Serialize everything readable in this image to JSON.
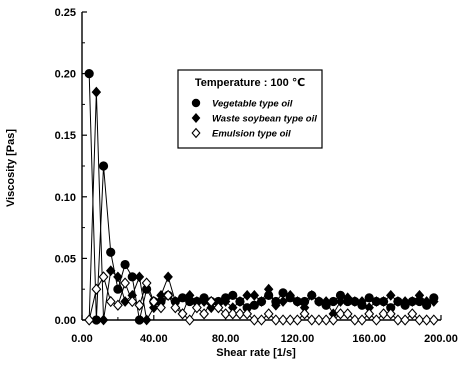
{
  "chart_data": {
    "type": "line",
    "title": "",
    "xlabel": "Shear rate [1/s]",
    "ylabel": "Viscosity [Pas]",
    "xlim": [
      0,
      200
    ],
    "ylim": [
      0,
      0.25
    ],
    "x_ticks": [
      0,
      40,
      80,
      120,
      160,
      200
    ],
    "x_tick_labels": [
      "0.00",
      "40.00",
      "80.00",
      "120.00",
      "160.00",
      "200.00"
    ],
    "y_ticks": [
      0,
      0.05,
      0.1,
      0.15,
      0.2,
      0.25
    ],
    "y_tick_labels": [
      "0.00",
      "0.05",
      "0.10",
      "0.15",
      "0.20",
      "0.25"
    ],
    "grid": false,
    "legend": {
      "title": "Temperature : 100 ℃",
      "placement": "top-center"
    },
    "series": [
      {
        "name": "Vegetable type oil",
        "marker": "filled-circle",
        "x": [
          4,
          8,
          12,
          16,
          20,
          24,
          28,
          32,
          36,
          40,
          44,
          48,
          52,
          56,
          60,
          64,
          68,
          72,
          76,
          80,
          84,
          88,
          92,
          96,
          100,
          104,
          108,
          112,
          116,
          120,
          124,
          128,
          132,
          136,
          140,
          144,
          148,
          152,
          156,
          160,
          164,
          168,
          172,
          176,
          180,
          184,
          188,
          192,
          196
        ],
        "y": [
          0.2,
          0.0,
          0.125,
          0.055,
          0.025,
          0.045,
          0.035,
          0.0,
          0.025,
          0.015,
          0.015,
          0.02,
          0.015,
          0.018,
          0.015,
          0.015,
          0.018,
          0.015,
          0.015,
          0.018,
          0.02,
          0.015,
          0.01,
          0.012,
          0.015,
          0.02,
          0.015,
          0.022,
          0.018,
          0.015,
          0.015,
          0.02,
          0.015,
          0.012,
          0.015,
          0.02,
          0.015,
          0.015,
          0.012,
          0.018,
          0.015,
          0.015,
          0.01,
          0.015,
          0.012,
          0.015,
          0.015,
          0.012,
          0.018
        ]
      },
      {
        "name": "Waste soybean type oil",
        "marker": "filled-diamond",
        "x": [
          4,
          8,
          12,
          16,
          20,
          24,
          28,
          32,
          36,
          40,
          44,
          48,
          52,
          56,
          60,
          64,
          68,
          72,
          76,
          80,
          84,
          88,
          92,
          96,
          100,
          104,
          108,
          112,
          116,
          120,
          124,
          128,
          132,
          136,
          140,
          144,
          148,
          152,
          156,
          160,
          164,
          168,
          172,
          176,
          180,
          184,
          188,
          192,
          196
        ],
        "y": [
          0.0,
          0.185,
          0.0,
          0.04,
          0.035,
          0.015,
          0.02,
          0.035,
          0.0,
          0.01,
          0.02,
          0.035,
          0.015,
          0.005,
          0.02,
          0.015,
          0.015,
          0.01,
          0.01,
          0.015,
          0.01,
          0.015,
          0.02,
          0.02,
          0.015,
          0.025,
          0.012,
          0.015,
          0.02,
          0.015,
          0.01,
          0.02,
          0.015,
          0.015,
          0.005,
          0.015,
          0.018,
          0.015,
          0.015,
          0.01,
          0.015,
          0.015,
          0.02,
          0.015,
          0.015,
          0.015,
          0.02,
          0.015,
          0.015
        ]
      },
      {
        "name": "Emulsion type oil",
        "marker": "open-diamond",
        "x": [
          4,
          8,
          12,
          16,
          20,
          24,
          28,
          32,
          36,
          40,
          44,
          48,
          52,
          56,
          60,
          64,
          68,
          72,
          76,
          80,
          84,
          88,
          92,
          96,
          100,
          104,
          108,
          112,
          116,
          120,
          124,
          128,
          132,
          136,
          140,
          144,
          148,
          152,
          156,
          160,
          164,
          168,
          172,
          176,
          180,
          184,
          188,
          192,
          196
        ],
        "y": [
          0.0,
          0.025,
          0.035,
          0.015,
          0.012,
          0.03,
          0.015,
          0.012,
          0.03,
          0.015,
          0.01,
          0.02,
          0.01,
          0.005,
          0.0,
          0.01,
          0.005,
          0.015,
          0.01,
          0.005,
          0.005,
          0.005,
          0.005,
          0.0,
          0.0,
          0.005,
          0.0,
          0.0,
          0.0,
          0.0,
          0.005,
          0.0,
          0.0,
          0.0,
          0.0,
          0.005,
          0.005,
          0.0,
          0.0,
          0.005,
          0.0,
          0.005,
          0.005,
          0.0,
          0.0,
          0.005,
          0.0,
          0.0,
          0.0
        ]
      }
    ]
  }
}
